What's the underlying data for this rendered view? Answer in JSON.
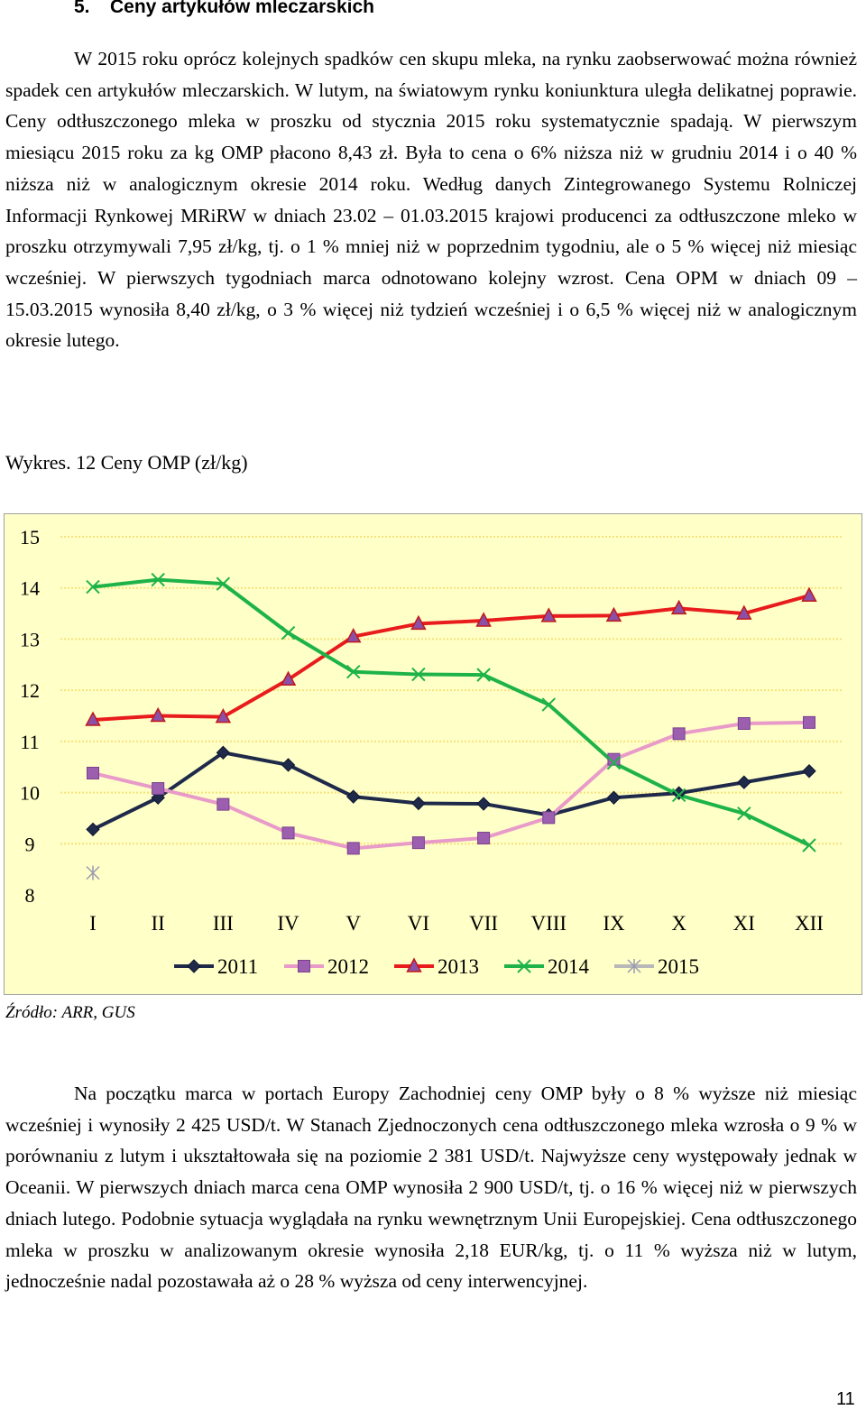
{
  "section": {
    "number": "5.",
    "title": "Ceny artykułów mleczarskich"
  },
  "paragraph1": "W 2015 roku oprócz kolejnych spadków cen skupu mleka, na rynku zaobserwować można również spadek cen artykułów mleczarskich. W lutym, na światowym rynku koniunktura uległa delikatnej poprawie. Ceny odtłuszczonego mleka w proszku od stycznia 2015 roku systematycznie spadają. W pierwszym miesiącu 2015 roku za kg OMP płacono 8,43 zł. Była to cena o 6% niższa niż w grudniu 2014 i o 40 % niższa niż w analogicznym okresie 2014 roku. Według danych Zintegrowanego Systemu Rolniczej Informacji Rynkowej MRiRW w dniach 23.02 – 01.03.2015 krajowi producenci za odtłuszczone mleko w proszku otrzymywali 7,95 zł/kg, tj. o 1 % mniej niż w poprzednim tygodniu, ale o 5 % więcej niż miesiąc wcześniej. W pierwszych tygodniach marca odnotowano kolejny wzrost. Cena OPM w dniach 09 – 15.03.2015 wynosiła 8,40 zł/kg, o 3 % więcej niż tydzień wcześniej i o 6,5 % więcej niż w analogicznym okresie lutego.",
  "chart_caption": "Wykres. 12 Ceny OMP (zł/kg)",
  "source": "Źródło: ARR, GUS",
  "paragraph2": "Na początku marca w portach Europy Zachodniej ceny OMP były o 8 % wyższe niż miesiąc wcześniej i wynosiły 2 425 USD/t. W Stanach Zjednoczonych cena odtłuszczonego mleka wzrosła o 9 % w porównaniu z lutym i ukształtowała się na poziomie 2 381 USD/t. Najwyższe ceny występowały jednak w Oceanii. W pierwszych dniach marca cena OMP wynosiła 2 900 USD/t, tj. o 16 % więcej niż w pierwszych dniach lutego. Podobnie sytuacja wyglądała na rynku wewnętrznym Unii Europejskiej. Cena odtłuszczonego mleka w proszku w analizowanym okresie wynosiła 2,18 EUR/kg, tj. o 11 % wyższa niż w lutym, jednocześnie nadal pozostawała aż o 28 % wyższa od ceny interwencyjnej.",
  "page_number": "11",
  "chart_data": {
    "type": "line",
    "title": "",
    "xlabel": "",
    "ylabel": "",
    "categories": [
      "I",
      "II",
      "III",
      "IV",
      "V",
      "VI",
      "VII",
      "VIII",
      "IX",
      "X",
      "XI",
      "XII"
    ],
    "yticks": [
      "8",
      "9",
      "10",
      "11",
      "12",
      "13",
      "14",
      "15"
    ],
    "ylim": [
      8,
      15
    ],
    "grid": true,
    "legend_position": "bottom",
    "series": [
      {
        "name": "2011",
        "color": "#1f2a4a",
        "marker": "diamond",
        "values": [
          9.28,
          9.9,
          10.78,
          10.54,
          9.92,
          9.79,
          9.78,
          9.56,
          9.9,
          9.99,
          10.2,
          10.42
        ]
      },
      {
        "name": "2012",
        "color": "#e89bc8",
        "marker": "square",
        "values": [
          10.38,
          10.08,
          9.77,
          9.21,
          8.91,
          9.02,
          9.11,
          9.51,
          10.65,
          11.15,
          11.35,
          11.37
        ]
      },
      {
        "name": "2013",
        "color": "#e81c1c",
        "marker": "triangle",
        "values": [
          11.42,
          11.5,
          11.48,
          12.21,
          13.05,
          13.3,
          13.36,
          13.45,
          13.46,
          13.6,
          13.5,
          13.85
        ]
      },
      {
        "name": "2014",
        "color": "#1db34a",
        "marker": "x",
        "values": [
          14.02,
          14.16,
          14.08,
          13.12,
          12.36,
          12.31,
          12.3,
          11.72,
          10.58,
          9.95,
          9.59,
          8.97
        ]
      },
      {
        "name": "2015",
        "color": "#b8b8b8",
        "marker": "star",
        "values": [
          8.43,
          null,
          null,
          null,
          null,
          null,
          null,
          null,
          null,
          null,
          null,
          null
        ]
      }
    ]
  }
}
